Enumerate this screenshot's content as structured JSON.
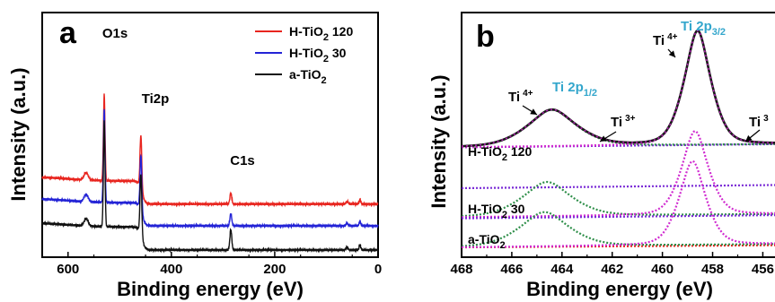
{
  "chart_data": [
    {
      "type": "line",
      "panel_label": "a",
      "xlabel": "Binding energy (eV)",
      "ylabel": "Intensity (a.u.)",
      "xlim": [
        650,
        0
      ],
      "x_ticks": [
        "600",
        "400",
        "200",
        "0"
      ],
      "x_tick_values": [
        600,
        400,
        200,
        0
      ],
      "legend_position": "top-right",
      "peak_labels": [
        {
          "text": "O1s",
          "x": 530
        },
        {
          "text": "Ti2p",
          "x": 459
        },
        {
          "text": "C1s",
          "x": 285
        }
      ],
      "series": [
        {
          "name_parts": [
            "H-TiO",
            "2",
            " 120"
          ],
          "color": "#e8251f",
          "baseline": 2.05,
          "peaks": [
            [
              530,
              3.6
            ],
            [
              459,
              2.2
            ],
            [
              565,
              0.3
            ],
            [
              285,
              0.45
            ],
            [
              35,
              0.2
            ],
            [
              60,
              0.1
            ]
          ]
        },
        {
          "name_parts": [
            "H-TiO",
            "2",
            " 30"
          ],
          "color": "#2323d6",
          "baseline": 1.15,
          "peaks": [
            [
              530,
              3.9
            ],
            [
              459,
              2.3
            ],
            [
              565,
              0.3
            ],
            [
              285,
              0.5
            ],
            [
              35,
              0.2
            ],
            [
              60,
              0.1
            ]
          ]
        },
        {
          "name_parts": [
            "a-TiO",
            "2",
            ""
          ],
          "color": "#111111",
          "baseline": 0.15,
          "peaks": [
            [
              530,
              4.4
            ],
            [
              459,
              2.5
            ],
            [
              565,
              0.3
            ],
            [
              285,
              0.85
            ],
            [
              35,
              0.22
            ],
            [
              60,
              0.12
            ]
          ]
        }
      ]
    },
    {
      "type": "line",
      "panel_label": "b",
      "xlabel": "Binding energy (eV)",
      "ylabel": "Intensity (a.u.)",
      "xlim": [
        468,
        455.3
      ],
      "x_ticks": [
        "468",
        "466",
        "464",
        "462",
        "460",
        "458",
        "456"
      ],
      "x_tick_values": [
        468,
        466,
        464,
        462,
        460,
        458,
        456
      ],
      "spectra": [
        {
          "label_parts": [
            "H-TiO",
            "2",
            " 120"
          ],
          "baseline": 4.9,
          "fit_color": "#1a1a1a",
          "peaks": [
            {
              "center": 464.4,
              "height": 1.7,
              "color": "#2f8f4a"
            },
            {
              "center": 458.6,
              "height": 5.3,
              "color": "#d02bd0"
            }
          ]
        },
        {
          "label_parts": [
            "H-TiO",
            "2",
            " 30"
          ],
          "baseline": 3.0,
          "peaks": [
            {
              "center": 464.6,
              "height": 1.6,
              "color": "#2f8f4a"
            },
            {
              "center": 458.7,
              "height": 3.9,
              "color": "#d02bd0"
            }
          ]
        },
        {
          "label_parts": [
            "a-TiO",
            "2",
            ""
          ],
          "baseline": 1.6,
          "peaks": [
            {
              "center": 464.7,
              "height": 1.6,
              "color": "#2f8f4a"
            },
            {
              "center": 458.8,
              "height": 3.9,
              "color": "#d02bd0"
            }
          ]
        }
      ],
      "annotations": [
        {
          "text": "Ti",
          "sup": "4+",
          "near": 464.5
        },
        {
          "text": "Ti 2p",
          "sub": "1/2",
          "near": 464.5
        },
        {
          "text": "Ti",
          "sup": "3+",
          "near": 462.3
        },
        {
          "text": "Ti",
          "sup": "4+",
          "near": 458.6
        },
        {
          "text": "Ti 2p",
          "sub": "3/2",
          "near": 458.6
        },
        {
          "text": "Ti",
          "sup": "3",
          "near": 455.8
        }
      ],
      "baseline_colors": [
        "#7a2bd6",
        "#e8251f"
      ]
    }
  ]
}
